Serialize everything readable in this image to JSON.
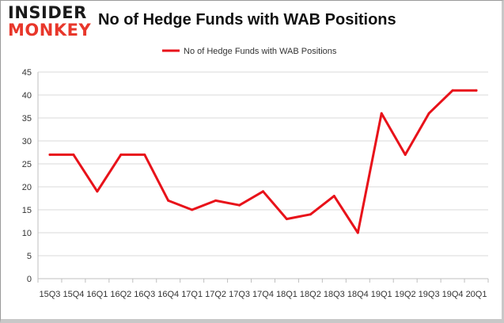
{
  "logo": {
    "top": "INSIDER",
    "bottom": "MONKEY"
  },
  "chart_data": {
    "type": "line",
    "title": "No of Hedge Funds with WAB Positions",
    "xlabel": "",
    "ylabel": "",
    "categories": [
      "15Q3",
      "15Q4",
      "16Q1",
      "16Q2",
      "16Q3",
      "16Q4",
      "17Q1",
      "17Q2",
      "17Q3",
      "17Q4",
      "18Q1",
      "18Q2",
      "18Q3",
      "18Q4",
      "19Q1",
      "19Q2",
      "19Q3",
      "19Q4",
      "20Q1"
    ],
    "series": [
      {
        "name": "No of Hedge Funds with WAB Positions",
        "values": [
          27,
          27,
          19,
          27,
          27,
          17,
          15,
          17,
          16,
          19,
          13,
          14,
          18,
          10,
          36,
          27,
          36,
          41,
          41
        ],
        "color": "#e8121a"
      }
    ],
    "ylim": [
      0,
      45
    ],
    "yticks": [
      0,
      5,
      10,
      15,
      20,
      25,
      30,
      35,
      40,
      45
    ],
    "grid": true,
    "legend": "top-center"
  }
}
